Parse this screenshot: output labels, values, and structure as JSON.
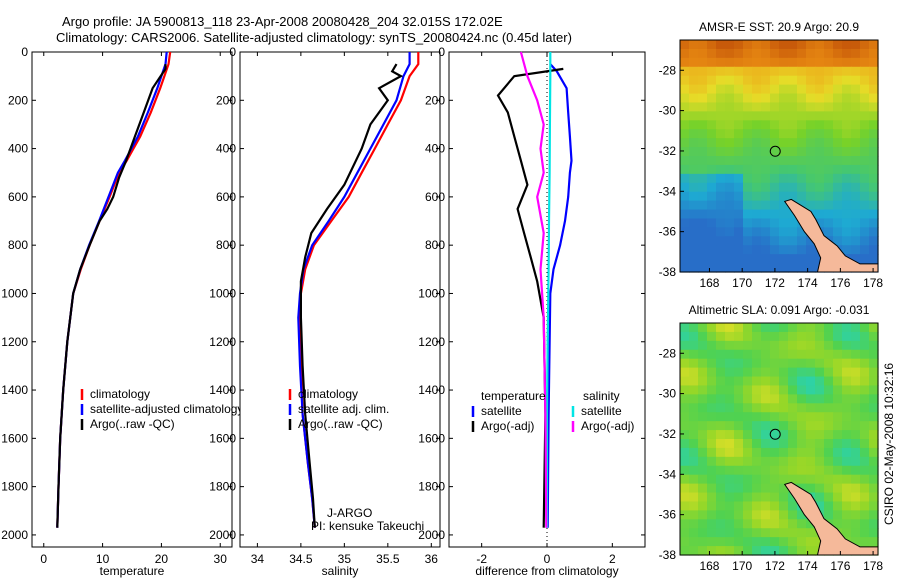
{
  "header": {
    "line1": "Argo profile: JA 5900813_118 23-Apr-2008 20080428_204 32.015S 172.02E",
    "line2": "Climatology: CARS2006. Satellite-adjusted climatology: synTS_20080424.nc (0.45d later)"
  },
  "chart_data": [
    {
      "id": "temperature",
      "type": "line",
      "xlabel": "temperature",
      "ylabel": "",
      "xlim": [
        -2,
        32
      ],
      "ylim": [
        2050,
        0
      ],
      "xticks": [
        0,
        10,
        20,
        30
      ],
      "yticks": [
        0,
        200,
        400,
        600,
        800,
        1000,
        1200,
        1400,
        1600,
        1800,
        2000
      ],
      "legend": [
        "climatology",
        "satellite-adjusted climatology",
        "Argo(..raw -QC)"
      ],
      "series": [
        {
          "name": "climatology",
          "color": "#ff0000",
          "x": [
            21.5,
            21.2,
            20.5,
            19.8,
            18.2,
            16.4,
            14.1,
            12.8,
            11.2,
            9.5,
            7.8,
            6.3,
            5.0,
            4.0,
            3.3,
            2.8,
            2.5,
            2.3
          ],
          "y": [
            0,
            50,
            100,
            150,
            250,
            350,
            450,
            500,
            600,
            700,
            800,
            900,
            1000,
            1200,
            1400,
            1600,
            1800,
            1970
          ]
        },
        {
          "name": "satellite-adjusted climatology",
          "color": "#0000ff",
          "x": [
            20.9,
            20.7,
            20.0,
            19.3,
            17.7,
            16.0,
            13.8,
            12.6,
            11.0,
            9.4,
            7.7,
            6.2,
            5.0,
            4.0,
            3.3,
            2.8,
            2.5,
            2.3
          ],
          "y": [
            0,
            50,
            100,
            150,
            250,
            350,
            450,
            500,
            600,
            700,
            800,
            900,
            1000,
            1200,
            1400,
            1600,
            1800,
            1970
          ]
        },
        {
          "name": "Argo(..raw -QC)",
          "color": "#000000",
          "x": [
            20.7,
            20.7,
            18.5,
            17.0,
            15.5,
            14.0,
            12.8,
            11.8,
            10.8,
            9.5,
            7.8,
            6.2,
            5.0,
            4.0,
            3.3,
            2.8,
            2.5,
            2.3
          ],
          "y": [
            50,
            70,
            150,
            250,
            350,
            450,
            520,
            600,
            650,
            700,
            800,
            900,
            1000,
            1200,
            1400,
            1600,
            1800,
            1970
          ]
        }
      ]
    },
    {
      "id": "salinity",
      "type": "line",
      "xlabel": "salinity",
      "xlim": [
        33.8,
        36.1
      ],
      "ylim": [
        2050,
        0
      ],
      "xticks": [
        34,
        34.5,
        35,
        35.5,
        36
      ],
      "yticks": [
        0,
        200,
        400,
        600,
        800,
        1000,
        1200,
        1400,
        1600,
        1800,
        2000
      ],
      "legend": [
        "climatology",
        "satellite adj. clim.",
        "Argo(..raw -QC)"
      ],
      "annotation": [
        "J-ARGO",
        "PI: kensuke Takeuchi"
      ],
      "series": [
        {
          "name": "climatology",
          "color": "#ff0000",
          "x": [
            35.85,
            35.85,
            35.75,
            35.65,
            35.5,
            35.35,
            35.2,
            35.05,
            34.85,
            34.65,
            34.55,
            34.5,
            34.48,
            34.5,
            34.52,
            34.58,
            34.63,
            34.66
          ],
          "y": [
            0,
            50,
            100,
            200,
            300,
            400,
            500,
            600,
            700,
            800,
            900,
            1000,
            1100,
            1300,
            1500,
            1700,
            1850,
            1970
          ]
        },
        {
          "name": "satellite adj. clim.",
          "color": "#0000ff",
          "x": [
            35.75,
            35.75,
            35.68,
            35.6,
            35.45,
            35.3,
            35.15,
            35.0,
            34.82,
            34.63,
            34.53,
            34.49,
            34.47,
            34.49,
            34.52,
            34.58,
            34.63,
            34.66
          ],
          "y": [
            0,
            50,
            100,
            200,
            300,
            400,
            500,
            600,
            700,
            800,
            900,
            1000,
            1100,
            1300,
            1500,
            1700,
            1850,
            1970
          ]
        },
        {
          "name": "Argo(..raw -QC)",
          "color": "#000000",
          "x": [
            35.6,
            35.55,
            35.65,
            35.4,
            35.5,
            35.3,
            35.2,
            35.0,
            34.8,
            34.62,
            34.55,
            34.5,
            34.5,
            34.52,
            34.55,
            34.6,
            34.64,
            34.66
          ],
          "y": [
            50,
            80,
            100,
            150,
            200,
            300,
            400,
            550,
            650,
            750,
            850,
            950,
            1100,
            1300,
            1500,
            1700,
            1850,
            1970
          ]
        }
      ]
    },
    {
      "id": "difference",
      "type": "line",
      "xlabel": "difference from climatology",
      "xlim": [
        -3,
        3
      ],
      "ylim": [
        2050,
        0
      ],
      "xticks": [
        -2,
        0,
        2
      ],
      "yticks": [
        0,
        200,
        400,
        600,
        800,
        1000,
        1200,
        1400,
        1600,
        1800,
        2000
      ],
      "legend_temperature": {
        "title": "temperature",
        "items": [
          "satellite",
          "Argo(-adj)"
        ]
      },
      "legend_salinity": {
        "title": "salinity",
        "items": [
          "satellite",
          "Argo(-adj)"
        ]
      },
      "series": [
        {
          "name": "temperature satellite",
          "color": "#0000ff",
          "x": [
            0.1,
            0.3,
            0.6,
            0.65,
            0.7,
            0.75,
            0.7,
            0.65,
            0.55,
            0.4,
            0.2,
            0.1,
            0.05,
            0.02
          ],
          "y": [
            50,
            80,
            150,
            250,
            350,
            450,
            500,
            600,
            700,
            800,
            900,
            1000,
            1500,
            1970
          ]
        },
        {
          "name": "temperature Argo(-adj)",
          "color": "#000000",
          "x": [
            0.5,
            -1.0,
            -1.5,
            -1.2,
            -1.0,
            -0.8,
            -0.6,
            -0.9,
            -0.7,
            -0.5,
            -0.3,
            -0.1,
            -0.05,
            -0.1
          ],
          "y": [
            70,
            100,
            180,
            250,
            350,
            450,
            550,
            650,
            750,
            850,
            950,
            1100,
            1500,
            1970
          ]
        },
        {
          "name": "salinity satellite",
          "color": "#00e5e5",
          "x": [
            0.1,
            0.1,
            0.09,
            0.08,
            0.06,
            0.05,
            0.04,
            0.02,
            0.0,
            0.0,
            0.0
          ],
          "y": [
            0,
            100,
            300,
            500,
            700,
            900,
            1000,
            1200,
            1500,
            1800,
            1970
          ]
        },
        {
          "name": "salinity Argo(-adj)",
          "color": "#ff00ff",
          "x": [
            -0.8,
            -0.6,
            -0.3,
            -0.1,
            -0.2,
            -0.1,
            -0.3,
            -0.1,
            -0.2,
            -0.1,
            -0.05,
            -0.02
          ],
          "y": [
            0,
            100,
            200,
            300,
            400,
            500,
            600,
            750,
            900,
            1100,
            1500,
            1970
          ]
        }
      ]
    },
    {
      "id": "sst-map",
      "type": "heatmap",
      "title": "AMSR-E SST: 20.9 Argo: 20.9",
      "xticks": [
        168,
        170,
        172,
        174,
        176,
        178
      ],
      "yticks": [
        -28,
        -30,
        -32,
        -34,
        -36,
        -38
      ],
      "xlim": [
        166.2,
        178.3
      ],
      "ylim": [
        -38,
        -26.5
      ],
      "float_position": {
        "lon": 172.02,
        "lat": -32.015
      }
    },
    {
      "id": "sla-map",
      "type": "heatmap",
      "title": "Altimetric SLA: 0.091 Argo: -0.031",
      "xticks": [
        168,
        170,
        172,
        174,
        176,
        178
      ],
      "yticks": [
        -28,
        -30,
        -32,
        -34,
        -36,
        -38
      ],
      "xlim": [
        166.2,
        178.3
      ],
      "ylim": [
        -38,
        -26.5
      ],
      "float_position": {
        "lon": 172.02,
        "lat": -32.015
      }
    }
  ],
  "footer": {
    "credit": "CSIRO 02-May-2008 10:32:16"
  },
  "colors": {
    "climatology": "#ff0000",
    "satellite": "#0000ff",
    "argo": "#000000",
    "sal_satellite": "#00e5e5",
    "sal_argo": "#ff00ff",
    "land": "#f5b99a"
  }
}
